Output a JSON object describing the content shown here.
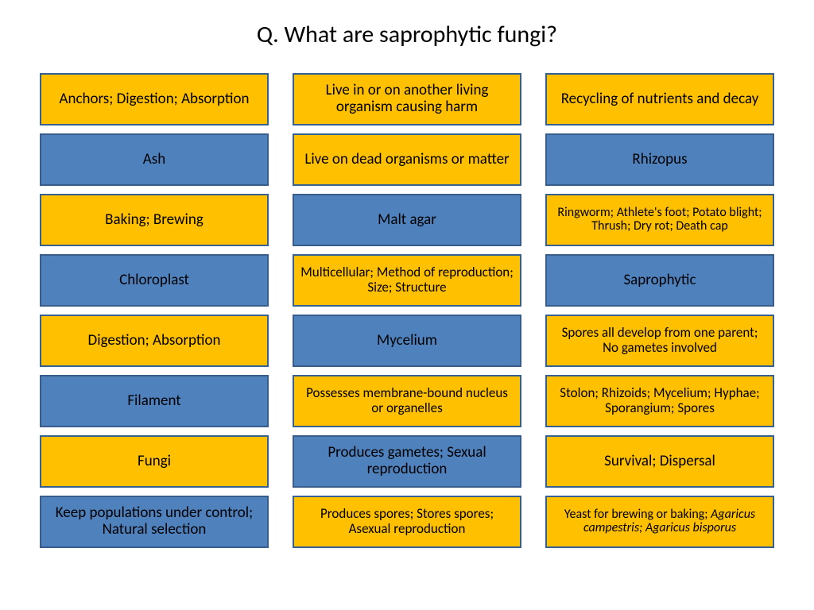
{
  "title": "Q. What are saprophytic fungi?",
  "colors": {
    "yellow": "#ffc000",
    "blue": "#4f81bd",
    "blue_border": "#385d8a",
    "yellow_border": "#376092"
  },
  "grid": {
    "columns": 3,
    "cells": [
      {
        "label": "Anchors; Digestion; Absorption",
        "fill": "yellow"
      },
      {
        "label": "Live in or on another living organism causing harm",
        "fill": "yellow"
      },
      {
        "label": "Recycling of nutrients and decay",
        "fill": "yellow"
      },
      {
        "label": "Ash",
        "fill": "blue"
      },
      {
        "label": "Live on dead organisms or matter",
        "fill": "yellow"
      },
      {
        "label": "Rhizopus",
        "fill": "blue"
      },
      {
        "label": "Baking; Brewing",
        "fill": "yellow"
      },
      {
        "label": "Malt agar",
        "fill": "blue"
      },
      {
        "label": "Ringworm; Athlete's foot; Potato blight; Thrush; Dry rot; Death cap",
        "fill": "yellow",
        "size": "xsmall"
      },
      {
        "label": "Chloroplast",
        "fill": "blue"
      },
      {
        "label": "Multicellular; Method of reproduction; Size; Structure",
        "fill": "yellow",
        "size": "small"
      },
      {
        "label": "Saprophytic",
        "fill": "blue"
      },
      {
        "label": "Digestion; Absorption",
        "fill": "yellow"
      },
      {
        "label": "Mycelium",
        "fill": "blue"
      },
      {
        "label": "Spores all develop from one parent; No gametes involved",
        "fill": "yellow",
        "size": "small"
      },
      {
        "label": "Filament",
        "fill": "blue"
      },
      {
        "label": "Possesses membrane-bound nucleus or organelles",
        "fill": "yellow",
        "size": "small"
      },
      {
        "label": "Stolon; Rhizoids; Mycelium; Hyphae; Sporangium; Spores",
        "fill": "yellow",
        "size": "small"
      },
      {
        "label": "Fungi",
        "fill": "yellow"
      },
      {
        "label": "Produces gametes; Sexual reproduction",
        "fill": "blue"
      },
      {
        "label": "Survival; Dispersal",
        "fill": "yellow"
      },
      {
        "label": "Keep populations under control; Natural selection",
        "fill": "blue"
      },
      {
        "label": "Produces spores; Stores spores; Asexual reproduction",
        "fill": "yellow",
        "size": "small"
      },
      {
        "label": "Yeast for brewing or baking; Agaricus campestris; Agaricus bisporus",
        "fill": "yellow",
        "size": "xsmall",
        "italic_tail": true
      }
    ]
  }
}
